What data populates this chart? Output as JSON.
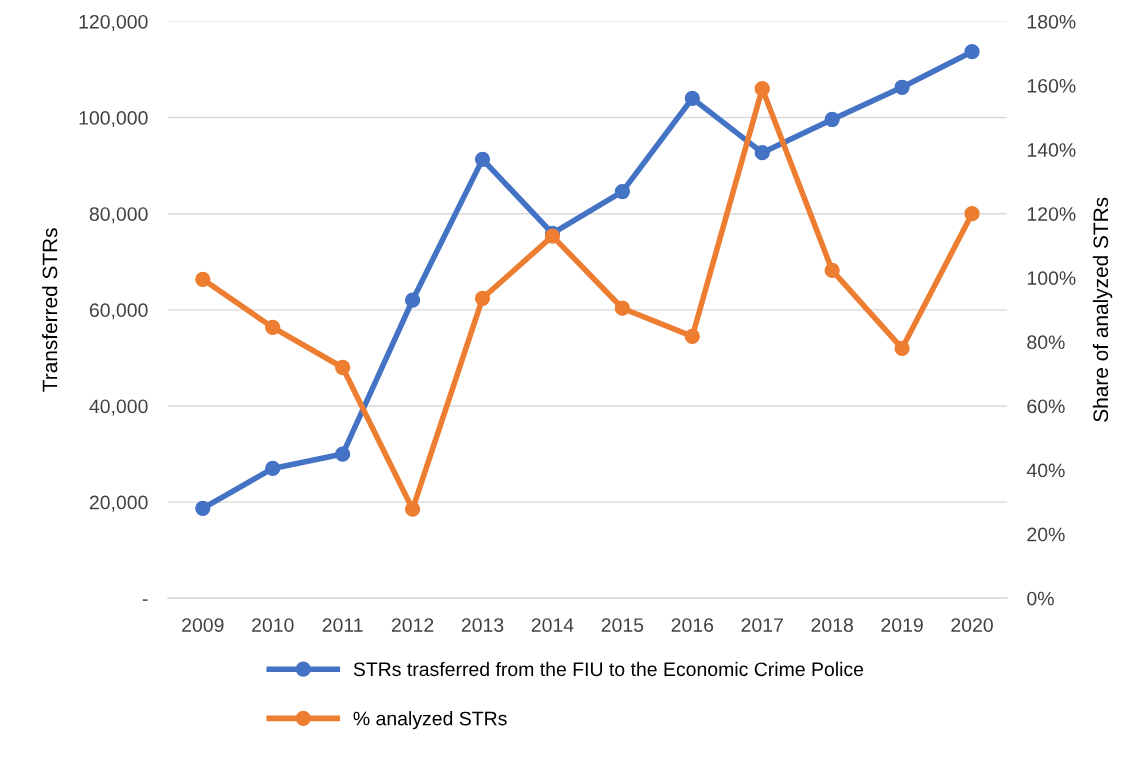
{
  "chart_data": {
    "type": "line",
    "categories": [
      "2009",
      "2010",
      "2011",
      "2012",
      "2013",
      "2014",
      "2015",
      "2016",
      "2017",
      "2018",
      "2019",
      "2020"
    ],
    "ylabel": "Transferred STRs",
    "y2label": "Share of analyzed STRs",
    "series": [
      {
        "name": "STRs trasferred from the FIU to the Economic Crime Police",
        "color": "#4472c4",
        "values": [
          18700,
          27000,
          30000,
          62000,
          91300,
          75900,
          84600,
          104000,
          92700,
          99600,
          106300,
          113700
        ]
      },
      {
        "name": "% analyzed STRs",
        "color": "#ed7d31",
        "axis": "y2",
        "values": [
          99.5,
          84.5,
          72,
          27.8,
          93.6,
          113,
          90.5,
          81.7,
          159,
          102.3,
          78,
          120
        ]
      }
    ],
    "ylim": [
      0,
      120000
    ],
    "yticks": [
      {
        "value": 0,
        "label": "-"
      },
      {
        "value": 20000,
        "label": "20,000"
      },
      {
        "value": 40000,
        "label": "40,000"
      },
      {
        "value": 60000,
        "label": "60,000"
      },
      {
        "value": 80000,
        "label": "80,000"
      },
      {
        "value": 100000,
        "label": "100,000"
      },
      {
        "value": 120000,
        "label": "120,000"
      }
    ],
    "y2lim": [
      0,
      180
    ],
    "y2ticks": [
      {
        "value": 0,
        "label": "0%"
      },
      {
        "value": 20,
        "label": "20%"
      },
      {
        "value": 40,
        "label": "40%"
      },
      {
        "value": 60,
        "label": "60%"
      },
      {
        "value": 80,
        "label": "80%"
      },
      {
        "value": 100,
        "label": "100%"
      },
      {
        "value": 120,
        "label": "120%"
      },
      {
        "value": 140,
        "label": "140%"
      },
      {
        "value": 160,
        "label": "160%"
      },
      {
        "value": 180,
        "label": "180%"
      }
    ],
    "grid": "y",
    "legend": "bottom",
    "marker": "circle",
    "line_style": "solid"
  }
}
